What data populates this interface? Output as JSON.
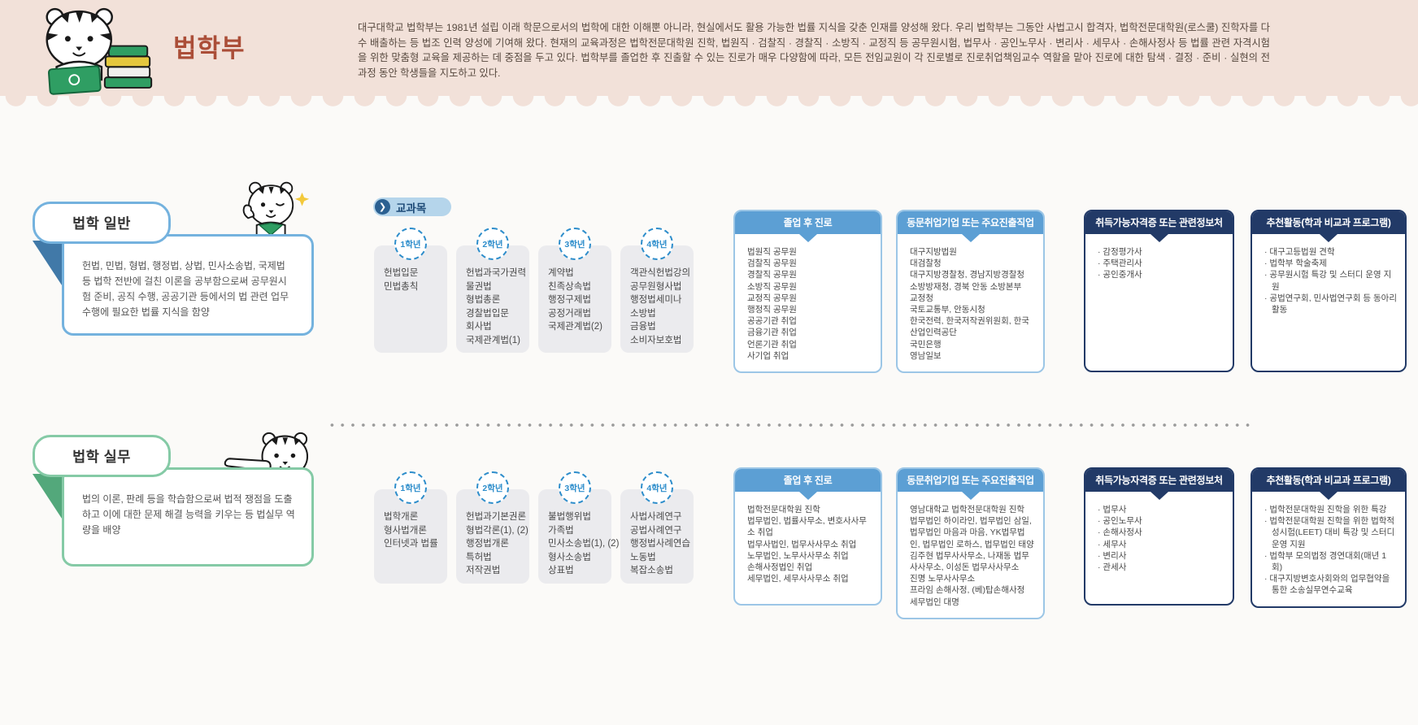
{
  "header": {
    "title": "법학부",
    "description": "대구대학교 법학부는 1981년 설립 이래 학문으로서의 법학에 대한 이해뿐 아니라, 현실에서도 활용 가능한 법률 지식을 갖춘 인재를 양성해 왔다. 우리 법학부는 그동안 사법고시 합격자, 법학전문대학원(로스쿨) 진학자를 다수 배출하는 등 법조 인력 양성에 기여해 왔다. 현재의 교육과정은 법학전문대학원 진학, 법원직 · 검찰직 · 경찰직 · 소방직 · 교정직 등 공무원시험, 법무사 · 공인노무사 · 변리사 · 세무사 · 손해사정사 등 법률 관련 자격시험을 위한 맞춤형 교육을 제공하는 데 중점을 두고 있다. 법학부를 졸업한 후 진출할 수 있는 진로가 매우 다양함에 따라, 모든 전임교원이 각 진로별로 진로취업책임교수 역할을 맡아 진로에 대한 탐색 · 결정 · 준비 · 실현의 전 과정 동안 학생들을 지도하고 있다."
  },
  "curriculum_label": "교과목",
  "colors": {
    "page_bg": "#fbfaf8",
    "header_bg": "#f2e1d9",
    "title": "#ab4e38",
    "header_text": "#57493f",
    "pill_bg": "#b5d5eb",
    "pill_text": "#1d4a77",
    "pill_icon_bg": "#2b6091",
    "year_circle": "#2d8dcb",
    "column_bg": "#ebebee",
    "body_text": "#4a4a4a",
    "career_blue": "#5c9fd4",
    "career_blue_border": "#9cc6e6",
    "career_navy": "#223a67"
  },
  "sections": [
    {
      "id": "general",
      "title": "법학 일반",
      "description": "헌법, 민법, 형법, 행정법, 상법, 민사소송법, 국제법 등 법학 전반에 걸친 이론을 공부함으로써 공무원시험 준비, 공직 수행, 공공기관 등에서의 법 관련 업무 수행에 필요한 법률 지식을 함양",
      "accent_colors": {
        "accent": "#74b2de",
        "fold": "#4179a8"
      },
      "years": [
        {
          "label": "1학년",
          "courses": [
            "헌법입문",
            "민법총칙"
          ]
        },
        {
          "label": "2학년",
          "courses": [
            "헌법과국가권력",
            "물권법",
            "형법총론",
            "경찰법입문",
            "회사법",
            "국제관계법(1)"
          ]
        },
        {
          "label": "3학년",
          "courses": [
            "계약법",
            "친족상속법",
            "행정구제법",
            "공정거래법",
            "국제관계법(2)"
          ]
        },
        {
          "label": "4학년",
          "courses": [
            "객관식헌법강의",
            "공무원형사법",
            "행정법세미나",
            "소방법",
            "금융법",
            "소비자보호법"
          ]
        }
      ],
      "career_boxes": [
        {
          "style": "blue",
          "bulleted": false,
          "title": "졸업 후 진로",
          "items": [
            "법원직 공무원",
            "검찰직 공무원",
            "경찰직 공무원",
            "소방직 공무원",
            "교정직 공무원",
            "행정직 공무원",
            "공공기관 취업",
            "금융기관 취업",
            "언론기관 취업",
            "사기업 취업"
          ]
        },
        {
          "style": "blue",
          "bulleted": false,
          "title": "동문취업기업 또는 주요진출직업",
          "items": [
            "대구지방법원",
            "대검찰청",
            "대구지방경찰청, 경남지방경찰청",
            "소방방재청, 경북 안동 소방본부",
            "교정청",
            "국토교통부, 안동시청",
            "한국전력, 한국저작권위원회, 한국산업인력공단",
            "국민은행",
            "영남일보"
          ]
        },
        {
          "style": "navy",
          "bulleted": true,
          "title": "취득가능자격증 또는 관련정보처",
          "items": [
            "감정평가사",
            "주택관리사",
            "공인중개사"
          ]
        },
        {
          "style": "navy",
          "bulleted": true,
          "title": "추천활동(학과 비교과 프로그램)",
          "items": [
            "대구고등법원 견학",
            "법학부 학술축제",
            "공무원시험 특강 및 스터디 운영 지원",
            "공법연구회, 민사법연구회 등 동아리 활동"
          ]
        }
      ]
    },
    {
      "id": "practice",
      "title": "법학 실무",
      "description": "법의 이론, 판례 등을 학습함으로써 법적 쟁점을 도출하고 이에 대한 문제 해결 능력을 키우는 등 법실무 역량을 배양",
      "accent_colors": {
        "accent": "#85caa6",
        "fold": "#53a87b"
      },
      "years": [
        {
          "label": "1학년",
          "courses": [
            "법학개론",
            "형사법개론",
            "인터넷과 법률"
          ]
        },
        {
          "label": "2학년",
          "courses": [
            "헌법과기본권론",
            "형법각론(1), (2)",
            "행정법개론",
            "특허법",
            "저작권법"
          ]
        },
        {
          "label": "3학년",
          "courses": [
            "불법행위법",
            "가족법",
            "민사소송법(1), (2)",
            "형사소송법",
            "상표법"
          ]
        },
        {
          "label": "4학년",
          "courses": [
            "사법사례연구",
            "공법사례연구",
            "행정법사례연습",
            "노동법",
            "복잡소송법"
          ]
        }
      ],
      "career_boxes": [
        {
          "style": "blue",
          "bulleted": false,
          "title": "졸업 후 진로",
          "items": [
            "법학전문대학원 진학",
            "법무법인, 법률사무소, 변호사사무소 취업",
            "법무사법인, 법무사사무소 취업",
            "노무법인, 노무사사무소 취업",
            "손해사정법인 취업",
            "세무법인, 세무사사무소 취업"
          ]
        },
        {
          "style": "blue",
          "bulleted": false,
          "title": "동문취업기업 또는 주요진출직업",
          "items": [
            "영남대학교 법학전문대학원 진학",
            "법무법인 하이라인, 법무법인 삼일, 법무법인 마음과 마음, YK법무법인, 법무법인 로하스, 법무법인 태양",
            "김주현 법무사사무소, 나재동 법무사사무소, 이성돈 법무사사무소",
            "진명 노무사사무소",
            "프라임 손해사정, (베)탑손해사정",
            "세무법인 대명"
          ]
        },
        {
          "style": "navy",
          "bulleted": true,
          "title": "취득가능자격증 또는 관련정보처",
          "items": [
            "법무사",
            "공인노무사",
            "손해사정사",
            "세무사",
            "변리사",
            "관세사"
          ]
        },
        {
          "style": "navy",
          "bulleted": true,
          "title": "추천활동(학과 비교과 프로그램)",
          "items": [
            "법학전문대학원 진학을 위한 특강",
            "법학전문대학원 진학을 위한 법학적성시험(LEET) 대비 특강 및 스터디 운영 지원",
            "법학부 모의법정 경연대회(매년 1회)",
            "대구지방변호사회와의 업무협약을 통한 소송실무연수교육"
          ]
        }
      ]
    }
  ]
}
